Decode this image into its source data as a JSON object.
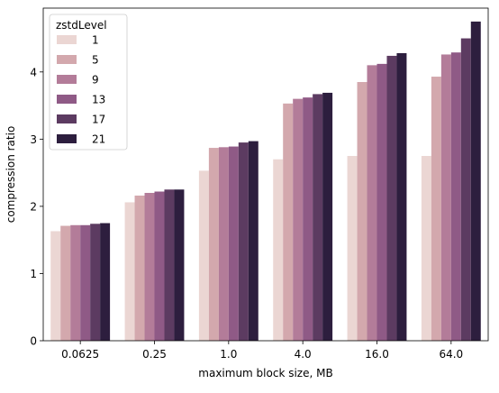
{
  "chart_data": {
    "type": "bar",
    "xlabel": "maximum block size, MB",
    "ylabel": "compression ratio",
    "ylim": [
      0,
      4.95
    ],
    "yticks": [
      0,
      1,
      2,
      3,
      4
    ],
    "categories": [
      "0.0625",
      "0.25",
      "1.0",
      "4.0",
      "16.0",
      "64.0"
    ],
    "legend": {
      "title": "zstdLevel",
      "placement": "top-left"
    },
    "series": [
      {
        "name": "1",
        "color": "#ebd6d3",
        "values": [
          1.63,
          2.06,
          2.53,
          2.7,
          2.75,
          2.75
        ]
      },
      {
        "name": "5",
        "color": "#d3a8ad",
        "values": [
          1.71,
          2.16,
          2.87,
          3.53,
          3.85,
          3.93
        ]
      },
      {
        "name": "9",
        "color": "#b37c99",
        "values": [
          1.72,
          2.2,
          2.88,
          3.6,
          4.1,
          4.26
        ]
      },
      {
        "name": "13",
        "color": "#8f5a86",
        "values": [
          1.72,
          2.22,
          2.89,
          3.62,
          4.12,
          4.29
        ]
      },
      {
        "name": "17",
        "color": "#5c3b61",
        "values": [
          1.74,
          2.25,
          2.95,
          3.67,
          4.24,
          4.5
        ]
      },
      {
        "name": "21",
        "color": "#2d1e3e",
        "values": [
          1.75,
          2.25,
          2.97,
          3.69,
          4.28,
          4.75
        ]
      }
    ]
  }
}
